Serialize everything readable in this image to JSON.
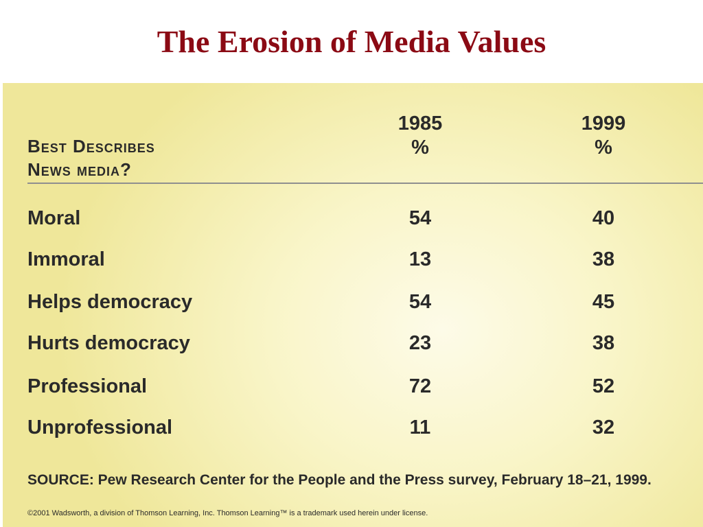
{
  "slide": {
    "title": "The Erosion of Media Values"
  },
  "chart_data": {
    "type": "table",
    "row_header": [
      "Best Describes",
      "News media?"
    ],
    "columns": [
      {
        "year": "1985",
        "unit": "%"
      },
      {
        "year": "1999",
        "unit": "%"
      }
    ],
    "rows": [
      {
        "label": "Moral",
        "values": [
          "54",
          "40"
        ]
      },
      {
        "label": "Immoral",
        "values": [
          "13",
          "38"
        ]
      },
      {
        "label": "Helps democracy",
        "values": [
          "54",
          "45"
        ]
      },
      {
        "label": "Hurts democracy",
        "values": [
          "23",
          "38"
        ]
      },
      {
        "label": "Professional",
        "values": [
          "72",
          "52"
        ]
      },
      {
        "label": "Unprofessional",
        "values": [
          "11",
          "32"
        ]
      }
    ],
    "source": "SOURCE: Pew Research Center for the People and the Press survey, February 18–21, 1999.",
    "copyright": "©2001 Wadsworth, a division of Thomson Learning, Inc. Thomson Learning™ is a trademark used herein under license."
  }
}
